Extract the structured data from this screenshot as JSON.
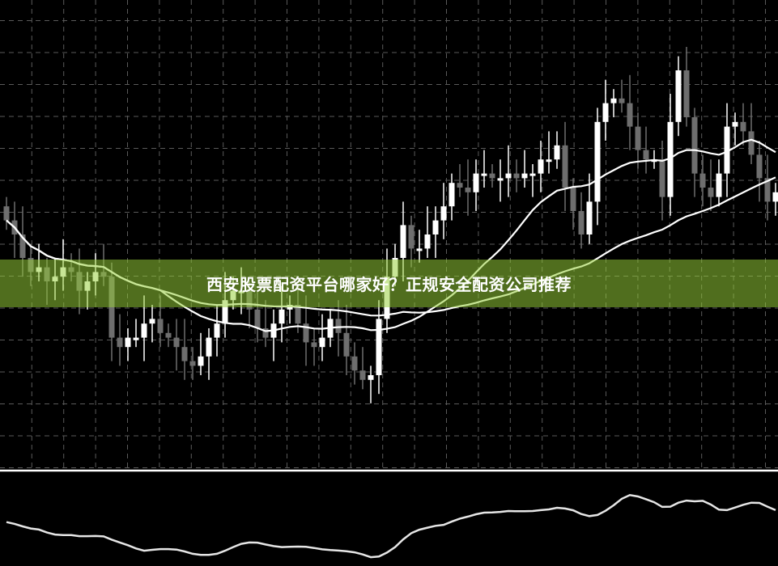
{
  "banner": {
    "title": "西安股票配资平台哪家好？正规安全配资公司推荐"
  },
  "colors": {
    "background": "#000000",
    "grid": "#5a5a5a",
    "bull": "#ffffff",
    "bear": "#6e6e6e",
    "ma": "#ffffff",
    "banner": "#9bcf39"
  },
  "chart_data": {
    "type": "candlestick",
    "title": "",
    "grid": true,
    "ylim": [
      0,
      100
    ],
    "open": [
      56,
      53,
      50,
      45,
      42,
      43,
      40,
      41,
      43,
      42,
      38,
      40,
      42,
      41,
      28,
      26,
      28,
      28,
      31,
      32,
      29,
      28,
      26,
      23,
      22,
      24,
      28,
      31,
      36,
      38,
      38,
      34,
      30,
      28,
      31,
      34,
      35,
      31,
      27,
      26,
      28,
      32,
      29,
      24,
      21,
      19,
      20,
      32,
      41,
      45,
      52,
      47,
      47,
      50,
      53,
      56,
      61,
      60,
      59,
      63,
      63,
      62,
      62,
      63,
      62,
      63,
      63,
      66,
      66,
      69,
      60,
      55,
      50,
      57,
      74,
      78,
      79,
      78,
      73,
      68,
      66,
      66,
      58,
      74,
      85,
      75,
      63,
      60,
      58,
      63,
      73,
      74,
      72,
      67,
      62,
      57
    ],
    "close": [
      53,
      50,
      45,
      42,
      43,
      40,
      41,
      43,
      42,
      38,
      40,
      42,
      41,
      28,
      26,
      28,
      28,
      31,
      32,
      29,
      28,
      26,
      23,
      22,
      24,
      28,
      31,
      36,
      38,
      38,
      34,
      30,
      28,
      31,
      34,
      35,
      31,
      27,
      26,
      28,
      32,
      29,
      24,
      21,
      19,
      20,
      32,
      41,
      45,
      52,
      47,
      47,
      50,
      53,
      56,
      61,
      60,
      59,
      63,
      63,
      62,
      62,
      63,
      62,
      63,
      63,
      66,
      66,
      69,
      60,
      55,
      50,
      57,
      74,
      78,
      79,
      78,
      73,
      68,
      66,
      66,
      58,
      74,
      85,
      75,
      63,
      60,
      58,
      63,
      73,
      74,
      72,
      67,
      62,
      57,
      59
    ],
    "moving_averages": [
      {
        "period": 20
      },
      {
        "period": 50
      }
    ],
    "oscillator": {
      "type": "line",
      "smoothing": 5
    }
  }
}
